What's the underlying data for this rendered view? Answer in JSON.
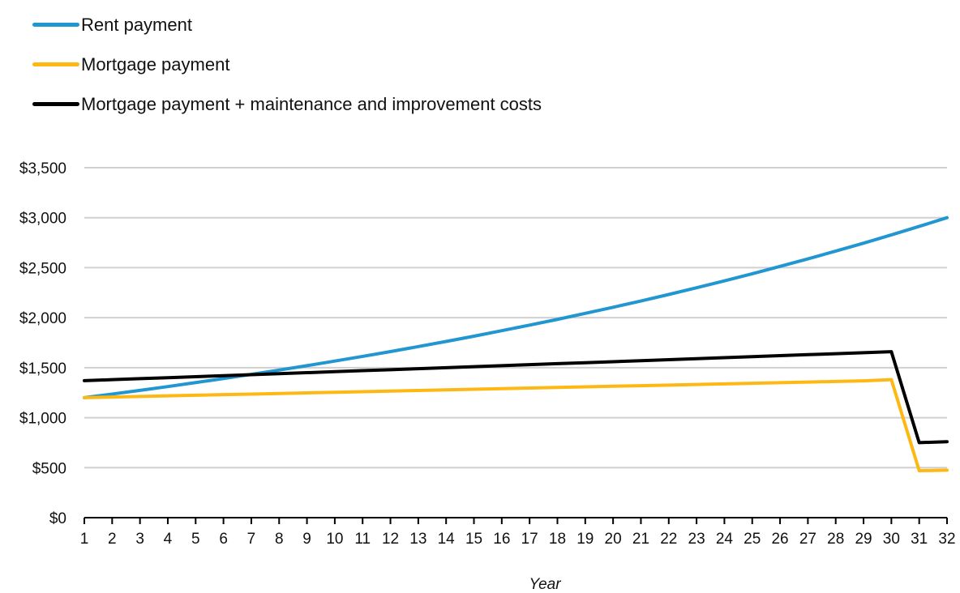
{
  "chart_data": {
    "type": "line",
    "title": "",
    "xlabel": "Year",
    "ylabel": "",
    "ylim": [
      0,
      3500
    ],
    "yticks": [
      0,
      500,
      1000,
      1500,
      2000,
      2500,
      3000,
      3500
    ],
    "ytick_labels": [
      "$0",
      "$500",
      "$1,000",
      "$1,500",
      "$2,000",
      "$2,500",
      "$3,000",
      "$3,500"
    ],
    "x": [
      1,
      2,
      3,
      4,
      5,
      6,
      7,
      8,
      9,
      10,
      11,
      12,
      13,
      14,
      15,
      16,
      17,
      18,
      19,
      20,
      21,
      22,
      23,
      24,
      25,
      26,
      27,
      28,
      29,
      30,
      31,
      32
    ],
    "grid": "horizontal",
    "legend_position": "top-left",
    "series": [
      {
        "name": "Rent payment",
        "color": "#2196D1",
        "values": [
          1200,
          1236,
          1273,
          1311,
          1351,
          1391,
          1433,
          1476,
          1520,
          1566,
          1613,
          1661,
          1711,
          1762,
          1815,
          1870,
          1926,
          1983,
          2043,
          2104,
          2167,
          2232,
          2299,
          2368,
          2439,
          2513,
          2588,
          2666,
          2745,
          2828,
          2913,
          3000
        ]
      },
      {
        "name": "Mortgage payment",
        "color": "#FDB813",
        "values": [
          1200,
          1206,
          1212,
          1218,
          1224,
          1230,
          1236,
          1242,
          1248,
          1254,
          1260,
          1266,
          1272,
          1278,
          1284,
          1290,
          1296,
          1302,
          1308,
          1314,
          1320,
          1326,
          1332,
          1338,
          1344,
          1350,
          1356,
          1362,
          1368,
          1380,
          470,
          475
        ]
      },
      {
        "name": "Mortgage payment + maintenance and improvement costs",
        "color": "#000000",
        "values": [
          1370,
          1380,
          1390,
          1400,
          1410,
          1420,
          1430,
          1440,
          1450,
          1460,
          1470,
          1480,
          1490,
          1500,
          1510,
          1520,
          1530,
          1540,
          1550,
          1560,
          1570,
          1580,
          1590,
          1600,
          1610,
          1620,
          1630,
          1640,
          1650,
          1660,
          750,
          760
        ]
      }
    ]
  }
}
